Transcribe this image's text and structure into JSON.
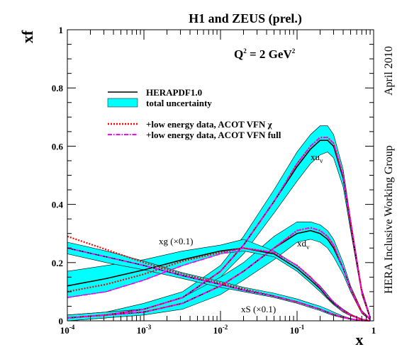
{
  "chart_data": {
    "type": "line",
    "title": "H1 and ZEUS (prel.)",
    "q2_label": "Q",
    "q2_label_rest": " = 2 GeV",
    "q2_power": "2",
    "xlabel": "x",
    "ylabel": "xf",
    "x_scale": "log",
    "xlim": [
      0.0001,
      1
    ],
    "ylim": [
      0,
      1
    ],
    "x_ticks": [
      {
        "base": "10",
        "exp": "-4",
        "value": 0.0001
      },
      {
        "base": "10",
        "exp": "-3",
        "value": 0.001
      },
      {
        "base": "10",
        "exp": "-2",
        "value": 0.01
      },
      {
        "base": "10",
        "exp": "-1",
        "value": 0.1
      },
      {
        "base": "1",
        "exp": "",
        "value": 1
      }
    ],
    "y_ticks": [
      "0",
      "0.2",
      "0.4",
      "0.6",
      "0.8",
      "1"
    ],
    "side_text_1": "April 2010",
    "side_text_2": "HERA Inclusive Working Group",
    "legend": {
      "placement": "top-center",
      "entries": [
        {
          "label": "HERAPDF1.0",
          "color": "#000000",
          "style": "solid"
        },
        {
          "label": "total uncertainty",
          "color": "#00ffff",
          "style": "band"
        },
        {
          "label": "+low energy data, ACOT VFN χ",
          "color": "#ff0000",
          "style": "dotted"
        },
        {
          "label": "+low energy data, ACOT VFN full",
          "color": "#ff00ff",
          "style": "dashdot"
        }
      ]
    },
    "annotations": [
      {
        "id": "xuv",
        "text": "xu",
        "sub": "v"
      },
      {
        "id": "xdv",
        "text": "xd",
        "sub": "v"
      },
      {
        "id": "xg",
        "text": "xg (×0.1)"
      },
      {
        "id": "xS",
        "text": "xS (×0.1)"
      }
    ],
    "colors": {
      "band": "#00ffff",
      "central": "#000000",
      "chi": "#ff0000",
      "full": "#ff00ff"
    },
    "series": [
      {
        "key": "xuv",
        "x": [
          0.0001,
          0.00032,
          0.001,
          0.0032,
          0.01,
          0.02,
          0.05,
          0.1,
          0.15,
          0.2,
          0.25,
          0.3,
          0.4,
          0.5,
          0.7,
          0.9
        ],
        "central": [
          0.01,
          0.02,
          0.04,
          0.08,
          0.17,
          0.26,
          0.41,
          0.53,
          0.59,
          0.62,
          0.62,
          0.6,
          0.49,
          0.33,
          0.1,
          0.01
        ],
        "band_lower": [
          0.0,
          0.01,
          0.03,
          0.07,
          0.15,
          0.23,
          0.37,
          0.48,
          0.54,
          0.57,
          0.58,
          0.56,
          0.46,
          0.31,
          0.09,
          0.005
        ],
        "band_upper": [
          0.02,
          0.03,
          0.06,
          0.1,
          0.19,
          0.29,
          0.45,
          0.58,
          0.64,
          0.67,
          0.67,
          0.64,
          0.52,
          0.35,
          0.11,
          0.015
        ],
        "chi": [
          0.01,
          0.02,
          0.04,
          0.08,
          0.17,
          0.26,
          0.41,
          0.54,
          0.6,
          0.63,
          0.63,
          0.61,
          0.5,
          0.34,
          0.1,
          0.01
        ],
        "full": [
          0.01,
          0.02,
          0.04,
          0.08,
          0.17,
          0.26,
          0.41,
          0.54,
          0.6,
          0.63,
          0.63,
          0.61,
          0.5,
          0.34,
          0.1,
          0.01
        ]
      },
      {
        "key": "xdv",
        "x": [
          0.0001,
          0.00032,
          0.001,
          0.0032,
          0.01,
          0.02,
          0.05,
          0.1,
          0.15,
          0.2,
          0.25,
          0.3,
          0.4,
          0.5,
          0.7,
          0.9
        ],
        "central": [
          0.01,
          0.02,
          0.03,
          0.06,
          0.12,
          0.17,
          0.25,
          0.3,
          0.31,
          0.3,
          0.28,
          0.25,
          0.18,
          0.11,
          0.03,
          0.005
        ],
        "band_lower": [
          0.0,
          0.01,
          0.02,
          0.04,
          0.09,
          0.14,
          0.21,
          0.27,
          0.28,
          0.27,
          0.25,
          0.22,
          0.16,
          0.1,
          0.025,
          0.003
        ],
        "band_upper": [
          0.02,
          0.03,
          0.04,
          0.08,
          0.15,
          0.2,
          0.29,
          0.34,
          0.34,
          0.33,
          0.31,
          0.28,
          0.2,
          0.12,
          0.035,
          0.008
        ],
        "chi": [
          0.01,
          0.02,
          0.03,
          0.06,
          0.12,
          0.17,
          0.25,
          0.31,
          0.32,
          0.31,
          0.29,
          0.26,
          0.18,
          0.11,
          0.03,
          0.005
        ],
        "full": [
          0.01,
          0.02,
          0.03,
          0.06,
          0.12,
          0.17,
          0.25,
          0.31,
          0.32,
          0.31,
          0.29,
          0.26,
          0.18,
          0.11,
          0.03,
          0.005
        ]
      },
      {
        "key": "xg",
        "x": [
          0.0001,
          0.00032,
          0.001,
          0.0032,
          0.01,
          0.02,
          0.05,
          0.1,
          0.15,
          0.2,
          0.25,
          0.3,
          0.4,
          0.5,
          0.7,
          0.9
        ],
        "central": [
          0.12,
          0.145,
          0.175,
          0.21,
          0.24,
          0.25,
          0.23,
          0.18,
          0.14,
          0.11,
          0.08,
          0.06,
          0.035,
          0.02,
          0.005,
          0.0
        ],
        "band_lower": [
          0.08,
          0.1,
          0.14,
          0.19,
          0.23,
          0.24,
          0.22,
          0.17,
          0.13,
          0.1,
          0.075,
          0.055,
          0.03,
          0.017,
          0.004,
          0.0
        ],
        "band_upper": [
          0.17,
          0.19,
          0.21,
          0.24,
          0.26,
          0.28,
          0.24,
          0.19,
          0.15,
          0.12,
          0.09,
          0.065,
          0.04,
          0.023,
          0.006,
          0.0
        ],
        "chi": [
          0.1,
          0.125,
          0.16,
          0.205,
          0.235,
          0.25,
          0.235,
          0.19,
          0.15,
          0.115,
          0.085,
          0.065,
          0.035,
          0.02,
          0.005,
          0.0
        ],
        "full": [
          0.08,
          0.1,
          0.14,
          0.19,
          0.23,
          0.25,
          0.235,
          0.19,
          0.15,
          0.115,
          0.085,
          0.065,
          0.035,
          0.02,
          0.005,
          0.0
        ]
      },
      {
        "key": "xS",
        "x": [
          0.0001,
          0.00032,
          0.001,
          0.0032,
          0.01,
          0.02,
          0.05,
          0.1,
          0.15,
          0.2,
          0.25,
          0.3,
          0.4,
          0.5,
          0.7,
          0.9
        ],
        "central": [
          0.25,
          0.22,
          0.19,
          0.155,
          0.125,
          0.105,
          0.085,
          0.065,
          0.05,
          0.04,
          0.03,
          0.022,
          0.012,
          0.006,
          0.001,
          0.0
        ],
        "band_lower": [
          0.23,
          0.2,
          0.175,
          0.145,
          0.115,
          0.1,
          0.08,
          0.06,
          0.045,
          0.035,
          0.025,
          0.018,
          0.01,
          0.005,
          0.001,
          0.0
        ],
        "band_upper": [
          0.27,
          0.24,
          0.205,
          0.165,
          0.135,
          0.115,
          0.095,
          0.075,
          0.06,
          0.05,
          0.04,
          0.03,
          0.016,
          0.008,
          0.002,
          0.0
        ],
        "chi": [
          0.29,
          0.245,
          0.2,
          0.16,
          0.13,
          0.11,
          0.085,
          0.065,
          0.05,
          0.04,
          0.03,
          0.022,
          0.012,
          0.006,
          0.001,
          0.0
        ],
        "full": [
          0.25,
          0.22,
          0.19,
          0.155,
          0.125,
          0.105,
          0.085,
          0.065,
          0.05,
          0.04,
          0.03,
          0.022,
          0.012,
          0.006,
          0.001,
          0.0
        ]
      }
    ]
  }
}
